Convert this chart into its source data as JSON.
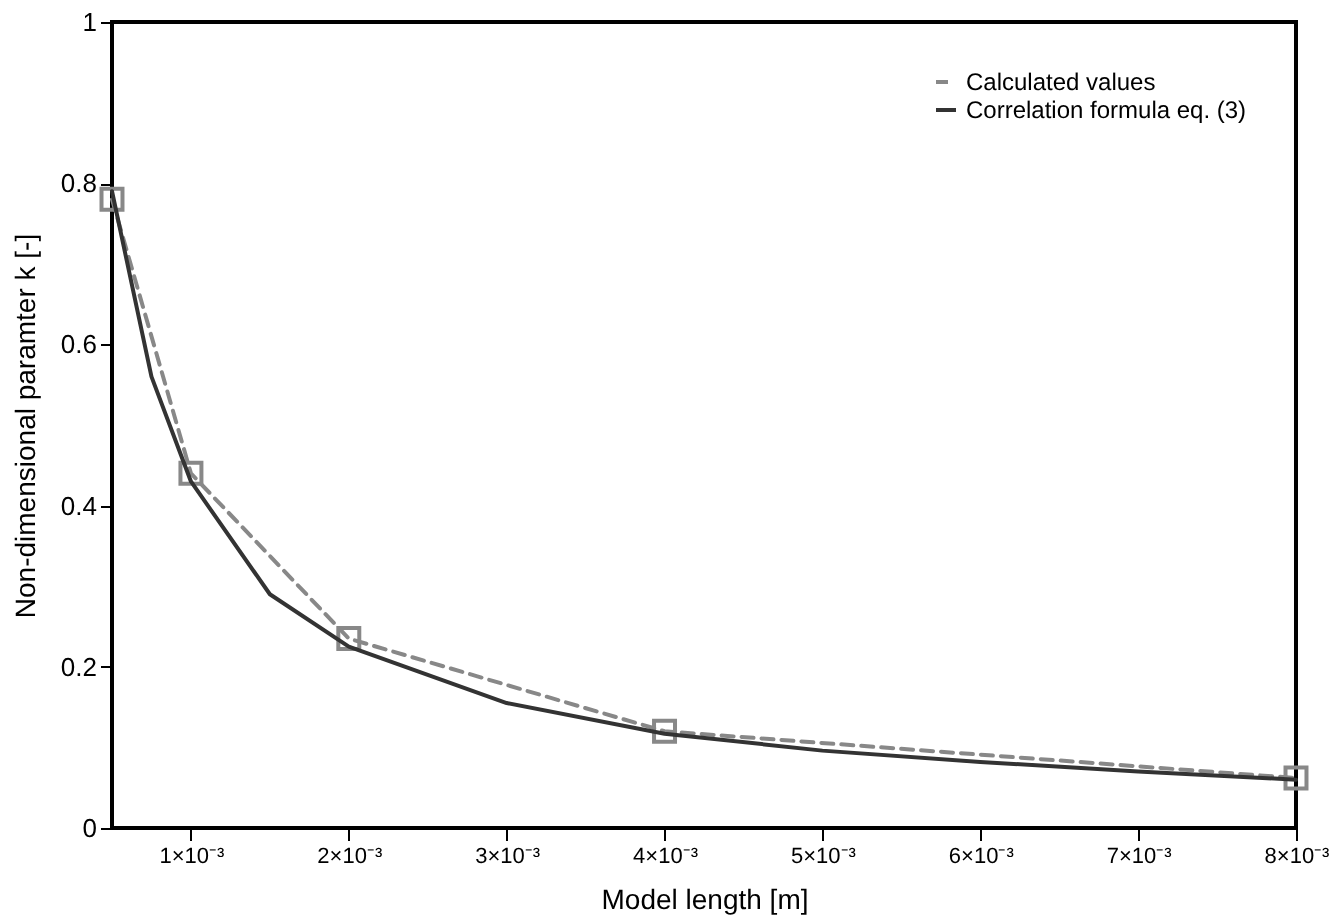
{
  "chart_data": {
    "type": "line",
    "xlabel": "Model length [m]",
    "ylabel": "Non-dimensional paramter k [-]",
    "xlim": [
      0.0005,
      0.008
    ],
    "ylim": [
      0,
      1
    ],
    "xticks": [
      {
        "value": 0.001,
        "label": "1×10⁻³"
      },
      {
        "value": 0.002,
        "label": "2×10⁻³"
      },
      {
        "value": 0.003,
        "label": "3×10⁻³"
      },
      {
        "value": 0.004,
        "label": "4×10⁻³"
      },
      {
        "value": 0.005,
        "label": "5×10⁻³"
      },
      {
        "value": 0.006,
        "label": "6×10⁻³"
      },
      {
        "value": 0.007,
        "label": "7×10⁻³"
      },
      {
        "value": 0.008,
        "label": "8×10⁻³"
      }
    ],
    "yticks": [
      0,
      0.2,
      0.4,
      0.6,
      0.8,
      1
    ],
    "grid": false,
    "legend": "top right",
    "series": [
      {
        "name": "Calculated values",
        "color": "#888888",
        "marker": "square",
        "line_style": "dashed",
        "x": [
          0.0005,
          0.001,
          0.002,
          0.004,
          0.008
        ],
        "values": [
          0.78,
          0.44,
          0.235,
          0.12,
          0.062
        ]
      },
      {
        "name": "Correlation formula eq. (3)",
        "color": "#333333",
        "marker": "none",
        "line_style": "solid",
        "x": [
          0.0005,
          0.00075,
          0.001,
          0.0015,
          0.002,
          0.003,
          0.004,
          0.005,
          0.006,
          0.007,
          0.008
        ],
        "values": [
          0.79,
          0.56,
          0.43,
          0.29,
          0.225,
          0.155,
          0.117,
          0.096,
          0.082,
          0.07,
          0.06
        ]
      }
    ]
  }
}
